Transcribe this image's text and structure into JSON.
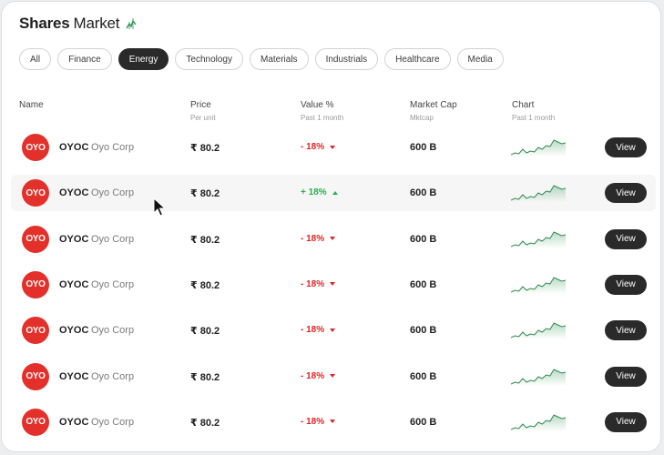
{
  "header": {
    "title_bold": "Shares",
    "title_rest": "Market",
    "title_icon": "stock-spark-icon"
  },
  "filters": [
    {
      "label": "All",
      "active": false
    },
    {
      "label": "Finance",
      "active": false
    },
    {
      "label": "Energy",
      "active": true
    },
    {
      "label": "Technology",
      "active": false
    },
    {
      "label": "Materials",
      "active": false
    },
    {
      "label": "Industrials",
      "active": false
    },
    {
      "label": "Healthcare",
      "active": false
    },
    {
      "label": "Media",
      "active": false
    }
  ],
  "columns": {
    "name": {
      "label": "Name"
    },
    "price": {
      "label": "Price",
      "sub": "Per unit"
    },
    "value": {
      "label": "Value %",
      "sub": "Past 1 month"
    },
    "mcap": {
      "label": "Market Cap",
      "sub": "Mktcap"
    },
    "chart": {
      "label": "Chart",
      "sub": "Past 1 month"
    }
  },
  "rows": [
    {
      "logo": "OYO",
      "ticker": "OYOC",
      "company": "Oyo Corp",
      "price": "₹ 80.2",
      "change": "- 18%",
      "direction": "down",
      "mcap": "600 B",
      "action": "View",
      "hover": false
    },
    {
      "logo": "OYO",
      "ticker": "OYOC",
      "company": "Oyo Corp",
      "price": "₹ 80.2",
      "change": "+ 18%",
      "direction": "up",
      "mcap": "600 B",
      "action": "View",
      "hover": true
    },
    {
      "logo": "OYO",
      "ticker": "OYOC",
      "company": "Oyo Corp",
      "price": "₹ 80.2",
      "change": "- 18%",
      "direction": "down",
      "mcap": "600 B",
      "action": "View",
      "hover": false
    },
    {
      "logo": "OYO",
      "ticker": "OYOC",
      "company": "Oyo Corp",
      "price": "₹ 80.2",
      "change": "- 18%",
      "direction": "down",
      "mcap": "600 B",
      "action": "View",
      "hover": false
    },
    {
      "logo": "OYO",
      "ticker": "OYOC",
      "company": "Oyo Corp",
      "price": "₹ 80.2",
      "change": "- 18%",
      "direction": "down",
      "mcap": "600 B",
      "action": "View",
      "hover": false
    },
    {
      "logo": "OYO",
      "ticker": "OYOC",
      "company": "Oyo Corp",
      "price": "₹ 80.2",
      "change": "- 18%",
      "direction": "down",
      "mcap": "600 B",
      "action": "View",
      "hover": false
    },
    {
      "logo": "OYO",
      "ticker": "OYOC",
      "company": "Oyo Corp",
      "price": "₹ 80.2",
      "change": "- 18%",
      "direction": "down",
      "mcap": "600 B",
      "action": "View",
      "hover": false
    }
  ],
  "sparkline": [
    3,
    4,
    3.5,
    6,
    4,
    5,
    4.5,
    7,
    6,
    8,
    7.5,
    11,
    10,
    9,
    9.5
  ],
  "colors": {
    "accent": "#2a2a2a",
    "down": "#e02424",
    "up": "#22b14c",
    "brand": "#e4302a",
    "spark": "#3a9a5a"
  }
}
